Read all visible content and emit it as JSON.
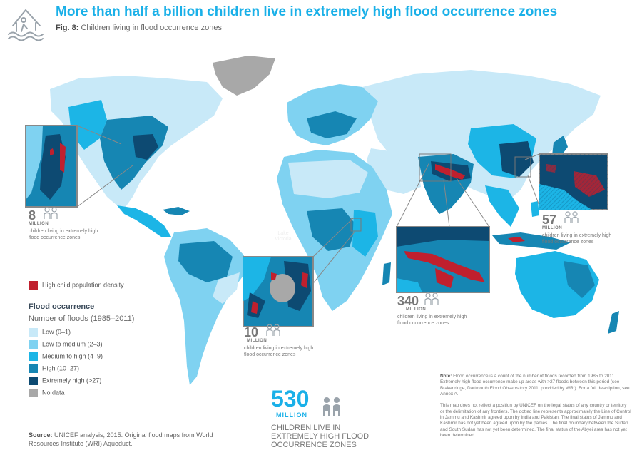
{
  "header": {
    "title": "More than half a billion children live in extremely high flood occurrence zones",
    "fig_label": "Fig. 8:",
    "fig_caption": "Children living in flood occurrence zones"
  },
  "map": {
    "lake_label": "Lake Victoria",
    "insets": [
      {
        "region": "north-america",
        "value": "8",
        "unit": "MILLION",
        "desc": "children living in extremely high flood occurrence zones"
      },
      {
        "region": "south-asia",
        "value": "340",
        "unit": "MILLION",
        "desc": "children living in extremely high flood occurrence zones"
      },
      {
        "region": "east-africa",
        "value": "10",
        "unit": "MILLION",
        "desc": "children living in extremely high flood occurrence zones"
      },
      {
        "region": "east-asia",
        "value": "57",
        "unit": "MILLION",
        "desc": "children living in extremely high flood occurrence zones"
      }
    ]
  },
  "legend": {
    "density_label": "High child population density",
    "density_color": "#c0202e",
    "heading": "Flood occurrence",
    "subheading": "Number of floods (1985–2011)",
    "items": [
      {
        "label": "Low (0–1)",
        "color": "#c8e9f8"
      },
      {
        "label": "Low to medium (2–3)",
        "color": "#7fd2f1"
      },
      {
        "label": "Medium to high (4–9)",
        "color": "#1cb5e6"
      },
      {
        "label": "High (10–27)",
        "color": "#1686b3"
      },
      {
        "label": "Extremely high (>27)",
        "color": "#0d4a72"
      },
      {
        "label": "No data",
        "color": "#a8a8a8"
      }
    ]
  },
  "summary": {
    "value": "530",
    "unit": "MILLION",
    "desc": "CHILDREN LIVE IN EXTREMELY HIGH FLOOD OCCURRENCE ZONES"
  },
  "source": {
    "label": "Source:",
    "text": "UNICEF analysis, 2015. Original flood maps from World Resources Institute (WRI) Aqueduct."
  },
  "note": {
    "label": "Note:",
    "text": "Flood occurrence is a count of the number of floods recorded from 1985 to 2011. Extremely high flood occurrence make up areas with >27 floods between this period (see Brakenridge, Dartmouth Flood Observatory 2011, provided by WRI). For a full description, see Annex A.",
    "disclaimer": "This map does not reflect a position by UNICEF on the legal status of any country or territory or the delimitation of any frontiers. The dotted line represents approximately the Line of Control in Jammu and Kashmir agreed upon by India and Pakistan. The final status of Jammu and Kashmir has not yet been agreed upon by the parties. The final boundary between the Sudan and South Sudan has not yet been determined. The final status of the Abyei area has not yet been determined."
  }
}
